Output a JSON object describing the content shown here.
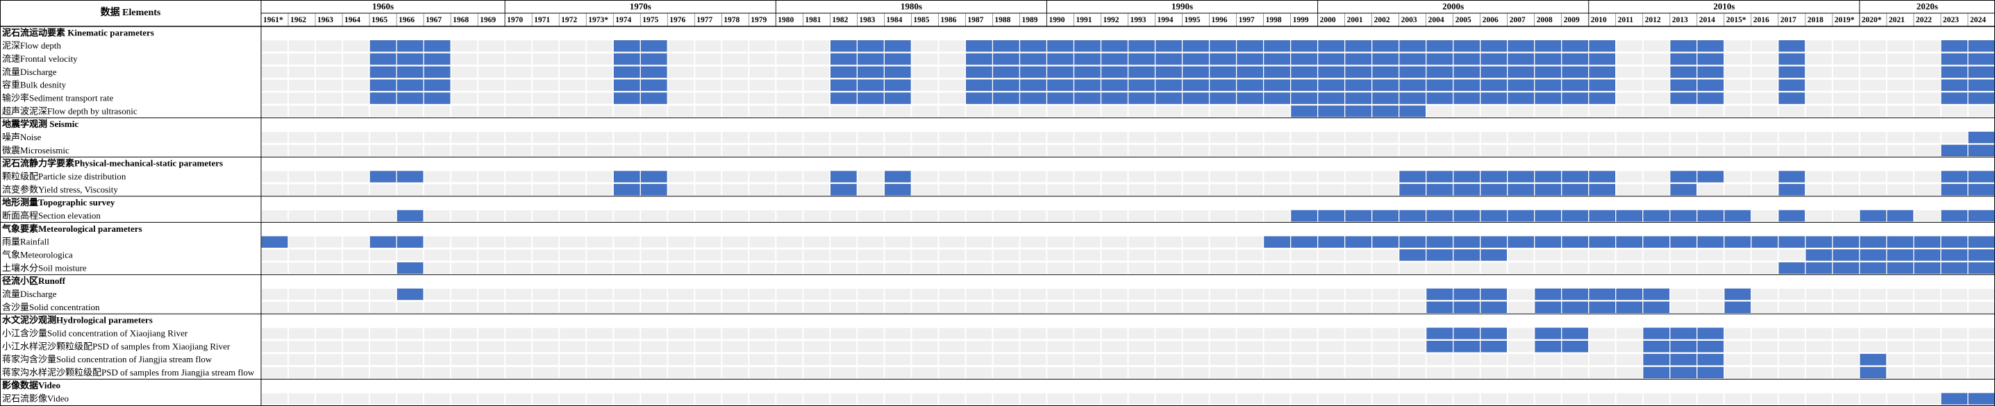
{
  "header": {
    "title": "数据 Elements",
    "decades": [
      "1960s",
      "1970s",
      "1980s",
      "1990s",
      "2000s",
      "2010s",
      "2020s"
    ],
    "years": [
      "1961*",
      "1962",
      "1963",
      "1964",
      "1965",
      "1966",
      "1967",
      "1968",
      "1969",
      "1970",
      "1971",
      "1972",
      "1973*",
      "1974",
      "1975",
      "1976",
      "1977",
      "1978",
      "1979",
      "1980",
      "1981",
      "1982",
      "1983",
      "1984",
      "1985",
      "1986",
      "1987",
      "1988",
      "1989",
      "1990",
      "1991",
      "1992",
      "1993",
      "1994",
      "1995",
      "1996",
      "1997",
      "1998",
      "1999",
      "2000",
      "2001",
      "2002",
      "2003",
      "2004",
      "2005",
      "2006",
      "2007",
      "2008",
      "2009",
      "2010",
      "2011",
      "2012",
      "2013",
      "2014",
      "2015*",
      "2016",
      "2017",
      "2018",
      "2019*",
      "2020*",
      "2021",
      "2022",
      "2023",
      "2024"
    ]
  },
  "groups": [
    {
      "title": "泥石流运动要素 Kinematic parameters",
      "rows": [
        {
          "label": "泥深Flow depth",
          "years": [
            "1965",
            "1966",
            "1967",
            "1974",
            "1975",
            "1982",
            "1983",
            "1984",
            "1987",
            "1988",
            "1989",
            "1990",
            "1991",
            "1992",
            "1993",
            "1994",
            "1995",
            "1996",
            "1997",
            "1998",
            "1999",
            "2000",
            "2001",
            "2002",
            "2003",
            "2004",
            "2005",
            "2006",
            "2007",
            "2008",
            "2009",
            "2010",
            "2013",
            "2014",
            "2017",
            "2023",
            "2024"
          ]
        },
        {
          "label": "流速Frontal velocity",
          "years": [
            "1965",
            "1966",
            "1967",
            "1974",
            "1975",
            "1982",
            "1983",
            "1984",
            "1987",
            "1988",
            "1989",
            "1990",
            "1991",
            "1992",
            "1993",
            "1994",
            "1995",
            "1996",
            "1997",
            "1998",
            "1999",
            "2000",
            "2001",
            "2002",
            "2003",
            "2004",
            "2005",
            "2006",
            "2007",
            "2008",
            "2009",
            "2010",
            "2013",
            "2014",
            "2017",
            "2023",
            "2024"
          ]
        },
        {
          "label": "流量Discharge",
          "years": [
            "1965",
            "1966",
            "1967",
            "1974",
            "1975",
            "1982",
            "1983",
            "1984",
            "1987",
            "1988",
            "1989",
            "1990",
            "1991",
            "1992",
            "1993",
            "1994",
            "1995",
            "1996",
            "1997",
            "1998",
            "1999",
            "2000",
            "2001",
            "2002",
            "2003",
            "2004",
            "2005",
            "2006",
            "2007",
            "2008",
            "2009",
            "2010",
            "2013",
            "2014",
            "2017",
            "2023",
            "2024"
          ]
        },
        {
          "label": "容重Bulk desnity",
          "years": [
            "1965",
            "1966",
            "1967",
            "1974",
            "1975",
            "1982",
            "1983",
            "1984",
            "1987",
            "1988",
            "1989",
            "1990",
            "1991",
            "1992",
            "1993",
            "1994",
            "1995",
            "1996",
            "1997",
            "1998",
            "1999",
            "2000",
            "2001",
            "2002",
            "2003",
            "2004",
            "2005",
            "2006",
            "2007",
            "2008",
            "2009",
            "2010",
            "2013",
            "2014",
            "2017",
            "2023",
            "2024"
          ]
        },
        {
          "label": "输沙率Sediment transport rate",
          "years": [
            "1965",
            "1966",
            "1967",
            "1974",
            "1975",
            "1982",
            "1983",
            "1984",
            "1987",
            "1988",
            "1989",
            "1990",
            "1991",
            "1992",
            "1993",
            "1994",
            "1995",
            "1996",
            "1997",
            "1998",
            "1999",
            "2000",
            "2001",
            "2002",
            "2003",
            "2004",
            "2005",
            "2006",
            "2007",
            "2008",
            "2009",
            "2010",
            "2013",
            "2014",
            "2017",
            "2023",
            "2024"
          ]
        },
        {
          "label": "超声波泥深Flow depth by ultrasonic",
          "years": [
            "1999",
            "2000",
            "2001",
            "2002",
            "2003"
          ]
        }
      ]
    },
    {
      "title": "地震学观测 Seismic",
      "rows": [
        {
          "label": "噪声Noise",
          "years": [
            "2024"
          ]
        },
        {
          "label": "微震Microseismic",
          "years": [
            "2023",
            "2024"
          ]
        }
      ]
    },
    {
      "title": "泥石流静力学要素Physical-mechanical-static parameters",
      "rows": [
        {
          "label": "颗粒级配Particle size distribution",
          "years": [
            "1965",
            "1966",
            "1974",
            "1975",
            "1982",
            "1984",
            "2003",
            "2004",
            "2005",
            "2006",
            "2007",
            "2008",
            "2009",
            "2010",
            "2013",
            "2014",
            "2017",
            "2023",
            "2024"
          ]
        },
        {
          "label": "流变参数Yield stress, Viscosity",
          "years": [
            "1974",
            "1975",
            "1982",
            "1984",
            "2003",
            "2004",
            "2005",
            "2006",
            "2007",
            "2008",
            "2009",
            "2010",
            "2013",
            "2017",
            "2023",
            "2024"
          ]
        }
      ]
    },
    {
      "title": "地形测量Topographic survey",
      "rows": [
        {
          "label": "断面高程Section elevation",
          "years": [
            "1966",
            "1999",
            "2000",
            "2001",
            "2002",
            "2003",
            "2004",
            "2005",
            "2006",
            "2007",
            "2008",
            "2009",
            "2010",
            "2011",
            "2012",
            "2013",
            "2014",
            "2015*",
            "2017",
            "2020*",
            "2021",
            "2023",
            "2024"
          ]
        }
      ]
    },
    {
      "title": "气象要素Meteorological parameters",
      "rows": [
        {
          "label": "雨量Rainfall",
          "years": [
            "1961*",
            "1965",
            "1966",
            "1998",
            "1999",
            "2000",
            "2001",
            "2002",
            "2003",
            "2004",
            "2005",
            "2006",
            "2007",
            "2008",
            "2009",
            "2010",
            "2011",
            "2012",
            "2013",
            "2014",
            "2015*",
            "2016",
            "2017",
            "2018",
            "2019*",
            "2020*",
            "2021",
            "2022",
            "2023",
            "2024"
          ]
        },
        {
          "label": "气象Meteorologica",
          "years": [
            "2003",
            "2004",
            "2005",
            "2006",
            "2018",
            "2019*",
            "2020*",
            "2021",
            "2022",
            "2023",
            "2024"
          ]
        },
        {
          "label": "土壤水分Soil moisture",
          "years": [
            "1966",
            "2017",
            "2018",
            "2019*",
            "2020*",
            "2021",
            "2022",
            "2023",
            "2024"
          ]
        }
      ]
    },
    {
      "title": "径流小区Runoff",
      "rows": [
        {
          "label": "流量Discharge",
          "years": [
            "1966",
            "2004",
            "2005",
            "2006",
            "2008",
            "2009",
            "2010",
            "2011",
            "2012",
            "2015*"
          ]
        },
        {
          "label": "含沙量Solid concentration",
          "years": [
            "2004",
            "2005",
            "2006",
            "2008",
            "2009",
            "2010",
            "2011",
            "2012",
            "2015*"
          ]
        }
      ]
    },
    {
      "title": "水文泥沙观测Hydrological parameters",
      "rows": [
        {
          "label": "小江含沙量Solid concentration of Xiaojiang River",
          "years": [
            "2004",
            "2005",
            "2006",
            "2008",
            "2009",
            "2012",
            "2013",
            "2014"
          ]
        },
        {
          "label": "小江水样泥沙颗粒级配PSD of samples from Xiaojiang River",
          "years": [
            "2004",
            "2005",
            "2006",
            "2008",
            "2009",
            "2012",
            "2013",
            "2014"
          ]
        },
        {
          "label": "蒋家沟含沙量Solid concentration of Jiangjia stream flow",
          "years": [
            "2012",
            "2013",
            "2014",
            "2020*"
          ]
        },
        {
          "label": "蒋家沟水样泥沙颗粒级配PSD of samples from Jiangjia stream flow",
          "years": [
            "2012",
            "2013",
            "2014",
            "2020*"
          ]
        }
      ]
    },
    {
      "title": "影像数据Video",
      "rows": [
        {
          "label": "泥石流影像Video",
          "years": [
            "2023",
            "2024"
          ]
        }
      ]
    }
  ]
}
